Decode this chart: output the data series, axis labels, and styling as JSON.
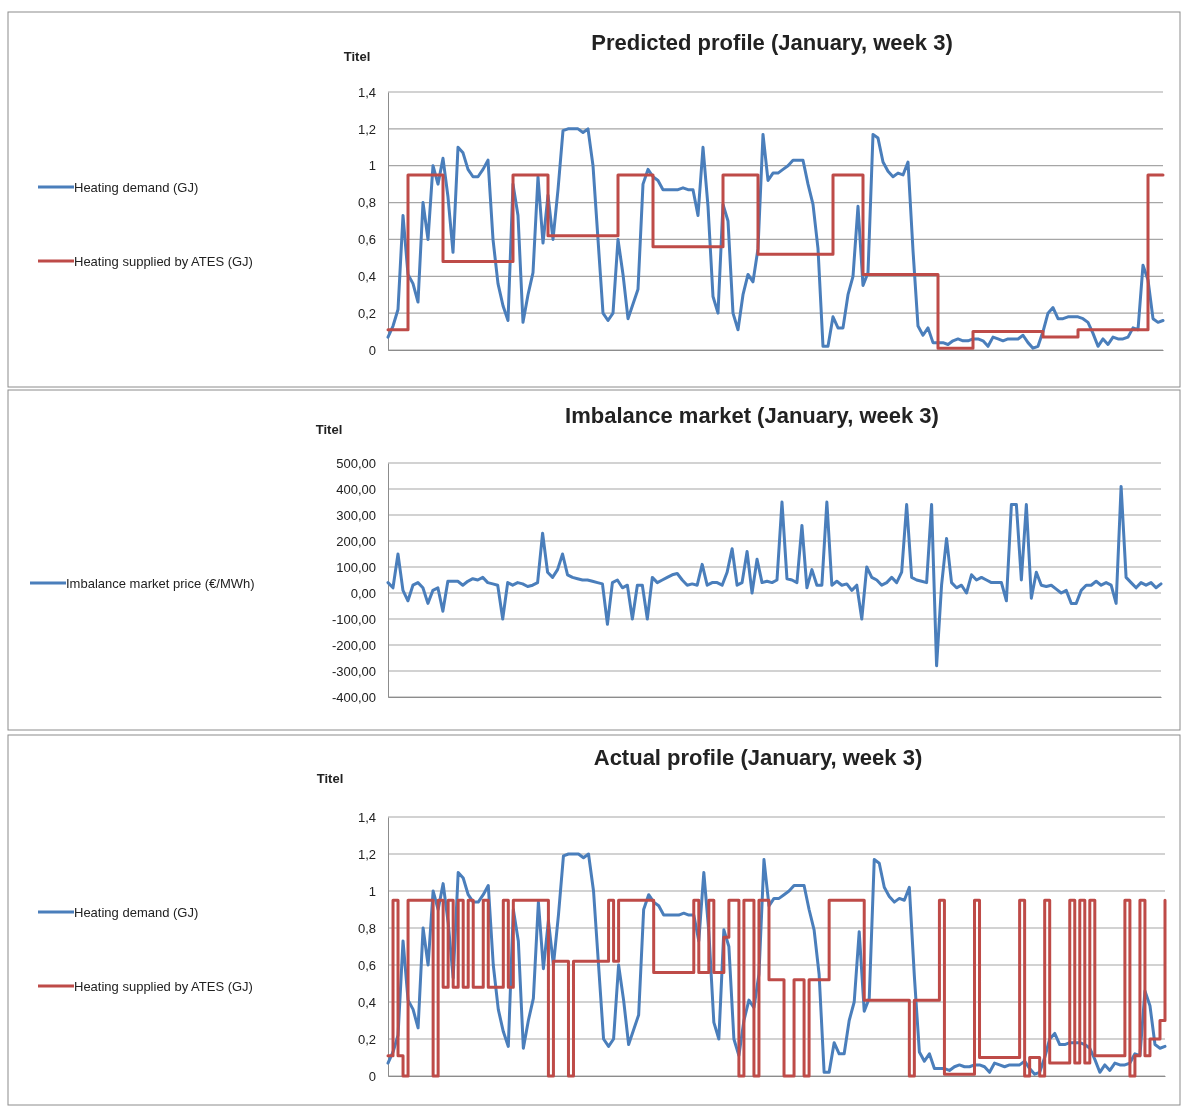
{
  "chart_data": [
    {
      "type": "line",
      "title": "Predicted profile (January, week 3)",
      "ylabel": "Titel",
      "grid": "y",
      "legend": "left",
      "categories": [
        null,
        null,
        null,
        null,
        null,
        null,
        null,
        null,
        null,
        null,
        null,
        null,
        null,
        null,
        null,
        null,
        null,
        null,
        null,
        null,
        null,
        null,
        null,
        null,
        null,
        null,
        null,
        null,
        null,
        null,
        null,
        null,
        null,
        null,
        null,
        null,
        null,
        null,
        null,
        null,
        null,
        null,
        null,
        null,
        null,
        null,
        null,
        null,
        null,
        null,
        null,
        null,
        null,
        null,
        null,
        null,
        null,
        null,
        null,
        null,
        null,
        null,
        null,
        null,
        null,
        null,
        null,
        null,
        null,
        null,
        null,
        null,
        null,
        null,
        null,
        null,
        null,
        null,
        null,
        null,
        null,
        null,
        null,
        null,
        null,
        null,
        null,
        null,
        null,
        null,
        null,
        null,
        null,
        null,
        null,
        null,
        null,
        null,
        null,
        null,
        null,
        null,
        null,
        null,
        null,
        null,
        null,
        null,
        null,
        null,
        null,
        null,
        null,
        null,
        null,
        null,
        null,
        null,
        null,
        null,
        null,
        null,
        null,
        null,
        null,
        null,
        null,
        null,
        null,
        null,
        null,
        null,
        null,
        null,
        null,
        null,
        null,
        null,
        null,
        null,
        null,
        null,
        null,
        null,
        null,
        null,
        null,
        null,
        null,
        null,
        null,
        null,
        null,
        null,
        null,
        null
      ],
      "ylim": [
        0,
        1.4
      ],
      "yticks": [
        {
          "value": 0,
          "label": "0"
        },
        {
          "value": 0.2,
          "label": "0,2"
        },
        {
          "value": 0.4,
          "label": "0,4"
        },
        {
          "value": 0.6,
          "label": "0,6"
        },
        {
          "value": 0.8,
          "label": "0,8"
        },
        {
          "value": 1,
          "label": "1"
        },
        {
          "value": 1.2,
          "label": "1,2"
        },
        {
          "value": 1.4,
          "label": "1,4"
        }
      ],
      "series": [
        {
          "name": "Heating demand (GJ)",
          "color": "#4a7ebb",
          "values": [
            0.07,
            0.13,
            0.22,
            0.73,
            0.41,
            0.36,
            0.26,
            0.8,
            0.6,
            1.0,
            0.9,
            1.04,
            0.83,
            0.53,
            1.1,
            1.07,
            0.98,
            0.94,
            0.94,
            0.98,
            1.03,
            0.6,
            0.36,
            0.24,
            0.16,
            0.9,
            0.73,
            0.15,
            0.3,
            0.42,
            0.94,
            0.58,
            0.84,
            0.6,
            0.87,
            1.19,
            1.2,
            1.2,
            1.2,
            1.18,
            1.2,
            1.0,
            0.6,
            0.2,
            0.16,
            0.2,
            0.6,
            0.41,
            0.17,
            0.25,
            0.33,
            0.9,
            0.98,
            0.94,
            0.92,
            0.87,
            0.87,
            0.87,
            0.87,
            0.88,
            0.87,
            0.87,
            0.73,
            1.1,
            0.78,
            0.29,
            0.2,
            0.79,
            0.7,
            0.2,
            0.11,
            0.3,
            0.41,
            0.37,
            0.55,
            1.17,
            0.92,
            0.96,
            0.96,
            0.98,
            1.0,
            1.03,
            1.03,
            1.03,
            0.9,
            0.79,
            0.55,
            0.02,
            0.02,
            0.18,
            0.12,
            0.12,
            0.3,
            0.4,
            0.78,
            0.35,
            0.42,
            1.17,
            1.15,
            1.02,
            0.97,
            0.94,
            0.96,
            0.95,
            1.02,
            0.54,
            0.13,
            0.08,
            0.12,
            0.04,
            0.04,
            0.04,
            0.03,
            0.05,
            0.06,
            0.05,
            0.05,
            0.06,
            0.06,
            0.05,
            0.02,
            0.07,
            0.06,
            0.05,
            0.06,
            0.06,
            0.06,
            0.08,
            0.04,
            0.01,
            0.02,
            0.1,
            0.2,
            0.23,
            0.17,
            0.17,
            0.18,
            0.18,
            0.18,
            0.17,
            0.15,
            0.09,
            0.02,
            0.06,
            0.03,
            0.07,
            0.06,
            0.06,
            0.07,
            0.12,
            0.11,
            0.46,
            0.38,
            0.17,
            0.15,
            0.16
          ]
        },
        {
          "name": "Heating supplied by ATES (GJ)",
          "type": "step",
          "color": "#be4b48",
          "values": [
            0.11,
            0.11,
            0.11,
            0.11,
            0.95,
            0.95,
            0.95,
            0.95,
            0.95,
            0.95,
            0.95,
            0.48,
            0.48,
            0.48,
            0.48,
            0.48,
            0.48,
            0.48,
            0.48,
            0.48,
            0.48,
            0.48,
            0.48,
            0.48,
            0.48,
            0.95,
            0.95,
            0.95,
            0.95,
            0.95,
            0.95,
            0.95,
            0.62,
            0.62,
            0.62,
            0.62,
            0.62,
            0.62,
            0.62,
            0.62,
            0.62,
            0.62,
            0.62,
            0.62,
            0.62,
            0.62,
            0.95,
            0.95,
            0.95,
            0.95,
            0.95,
            0.95,
            0.95,
            0.56,
            0.56,
            0.56,
            0.56,
            0.56,
            0.56,
            0.56,
            0.56,
            0.56,
            0.56,
            0.56,
            0.56,
            0.56,
            0.56,
            0.95,
            0.95,
            0.95,
            0.95,
            0.95,
            0.95,
            0.95,
            0.52,
            0.52,
            0.52,
            0.52,
            0.52,
            0.52,
            0.52,
            0.52,
            0.52,
            0.52,
            0.52,
            0.52,
            0.52,
            0.52,
            0.52,
            0.95,
            0.95,
            0.95,
            0.95,
            0.95,
            0.95,
            0.41,
            0.41,
            0.41,
            0.41,
            0.41,
            0.41,
            0.41,
            0.41,
            0.41,
            0.41,
            0.41,
            0.41,
            0.41,
            0.41,
            0.41,
            0.01,
            0.01,
            0.01,
            0.01,
            0.01,
            0.01,
            0.01,
            0.1,
            0.1,
            0.1,
            0.1,
            0.1,
            0.1,
            0.1,
            0.1,
            0.1,
            0.1,
            0.1,
            0.1,
            0.1,
            0.1,
            0.07,
            0.07,
            0.07,
            0.07,
            0.07,
            0.07,
            0.07,
            0.11,
            0.11,
            0.11,
            0.11,
            0.11,
            0.11,
            0.11,
            0.11,
            0.11,
            0.11,
            0.11,
            0.11,
            0.11,
            0.11,
            0.95,
            0.95,
            0.95,
            0.95
          ]
        }
      ]
    },
    {
      "type": "line",
      "title": "Imbalance market (January, week 3)",
      "ylabel": "Titel",
      "grid": "y",
      "legend": "left",
      "categories": [
        null,
        null,
        null,
        null,
        null,
        null,
        null,
        null,
        null,
        null,
        null,
        null,
        null,
        null,
        null,
        null,
        null,
        null,
        null,
        null,
        null,
        null,
        null,
        null,
        null,
        null,
        null,
        null,
        null,
        null,
        null,
        null,
        null,
        null,
        null,
        null,
        null,
        null,
        null,
        null,
        null,
        null,
        null,
        null,
        null,
        null,
        null,
        null,
        null,
        null,
        null,
        null,
        null,
        null,
        null,
        null,
        null,
        null,
        null,
        null,
        null,
        null,
        null,
        null,
        null,
        null,
        null,
        null,
        null,
        null,
        null,
        null,
        null,
        null,
        null,
        null,
        null,
        null,
        null,
        null,
        null,
        null,
        null,
        null,
        null,
        null,
        null,
        null,
        null,
        null,
        null,
        null,
        null,
        null,
        null,
        null,
        null,
        null,
        null,
        null,
        null,
        null,
        null,
        null,
        null,
        null,
        null,
        null,
        null,
        null,
        null,
        null,
        null,
        null,
        null,
        null,
        null,
        null,
        null,
        null,
        null,
        null,
        null,
        null,
        null,
        null,
        null,
        null,
        null,
        null,
        null,
        null,
        null,
        null,
        null,
        null,
        null,
        null,
        null,
        null,
        null,
        null,
        null,
        null,
        null,
        null,
        null,
        null,
        null,
        null,
        null,
        null,
        null,
        null,
        null,
        null
      ],
      "ylim": [
        -400,
        500
      ],
      "yticks": [
        {
          "value": -400,
          "label": "-400,00"
        },
        {
          "value": -300,
          "label": "-300,00"
        },
        {
          "value": -200,
          "label": "-200,00"
        },
        {
          "value": -100,
          "label": "-100,00"
        },
        {
          "value": 0,
          "label": "0,00"
        },
        {
          "value": 100,
          "label": "100,00"
        },
        {
          "value": 200,
          "label": "200,00"
        },
        {
          "value": 300,
          "label": "300,00"
        },
        {
          "value": 400,
          "label": "400,00"
        },
        {
          "value": 500,
          "label": "500,00"
        }
      ],
      "series": [
        {
          "name": "Imbalance market price (€/MWh)",
          "color": "#4a7ebb",
          "values": [
            40,
            20,
            150,
            10,
            -30,
            30,
            40,
            20,
            -40,
            10,
            20,
            -70,
            45,
            45,
            45,
            30,
            45,
            55,
            50,
            60,
            40,
            35,
            30,
            -100,
            40,
            30,
            40,
            35,
            25,
            30,
            40,
            230,
            80,
            60,
            90,
            150,
            70,
            60,
            55,
            50,
            50,
            45,
            40,
            35,
            -120,
            40,
            50,
            20,
            30,
            -100,
            30,
            30,
            -100,
            60,
            40,
            50,
            60,
            70,
            75,
            50,
            30,
            35,
            30,
            110,
            30,
            40,
            40,
            30,
            80,
            170,
            30,
            40,
            160,
            0,
            130,
            40,
            45,
            40,
            50,
            350,
            55,
            50,
            40,
            260,
            20,
            90,
            30,
            30,
            350,
            30,
            45,
            30,
            35,
            10,
            30,
            -100,
            100,
            60,
            50,
            30,
            40,
            60,
            40,
            80,
            340,
            60,
            50,
            45,
            40,
            340,
            -280,
            30,
            210,
            40,
            20,
            30,
            0,
            70,
            50,
            60,
            50,
            40,
            40,
            40,
            -30,
            340,
            340,
            50,
            340,
            -20,
            80,
            30,
            25,
            30,
            15,
            0,
            10,
            -40,
            -40,
            10,
            30,
            30,
            45,
            30,
            40,
            30,
            -40,
            410,
            60,
            40,
            20,
            40,
            30,
            40,
            20,
            35
          ]
        }
      ]
    },
    {
      "type": "line",
      "title": "Actual profile (January, week 3)",
      "ylabel": "Titel",
      "grid": "y",
      "legend": "left",
      "categories": [
        null,
        null,
        null,
        null,
        null,
        null,
        null,
        null,
        null,
        null,
        null,
        null,
        null,
        null,
        null,
        null,
        null,
        null,
        null,
        null,
        null,
        null,
        null,
        null,
        null,
        null,
        null,
        null,
        null,
        null,
        null,
        null,
        null,
        null,
        null,
        null,
        null,
        null,
        null,
        null,
        null,
        null,
        null,
        null,
        null,
        null,
        null,
        null,
        null,
        null,
        null,
        null,
        null,
        null,
        null,
        null,
        null,
        null,
        null,
        null,
        null,
        null,
        null,
        null,
        null,
        null,
        null,
        null,
        null,
        null,
        null,
        null,
        null,
        null,
        null,
        null,
        null,
        null,
        null,
        null,
        null,
        null,
        null,
        null,
        null,
        null,
        null,
        null,
        null,
        null,
        null,
        null,
        null,
        null,
        null,
        null,
        null,
        null,
        null,
        null,
        null,
        null,
        null,
        null,
        null,
        null,
        null,
        null,
        null,
        null,
        null,
        null,
        null,
        null,
        null,
        null,
        null,
        null,
        null,
        null,
        null,
        null,
        null,
        null,
        null,
        null,
        null,
        null,
        null,
        null,
        null,
        null,
        null,
        null,
        null,
        null,
        null,
        null,
        null,
        null,
        null,
        null,
        null,
        null,
        null,
        null,
        null,
        null,
        null,
        null,
        null,
        null,
        null,
        null,
        null,
        null
      ],
      "ylim": [
        0,
        1.4
      ],
      "yticks": [
        {
          "value": 0,
          "label": "0"
        },
        {
          "value": 0.2,
          "label": "0,2"
        },
        {
          "value": 0.4,
          "label": "0,4"
        },
        {
          "value": 0.6,
          "label": "0,6"
        },
        {
          "value": 0.8,
          "label": "0,8"
        },
        {
          "value": 1,
          "label": "1"
        },
        {
          "value": 1.2,
          "label": "1,2"
        },
        {
          "value": 1.4,
          "label": "1,4"
        }
      ],
      "series": [
        {
          "name": "Heating demand (GJ)",
          "color": "#4a7ebb",
          "values": [
            0.07,
            0.13,
            0.22,
            0.73,
            0.41,
            0.36,
            0.26,
            0.8,
            0.6,
            1.0,
            0.9,
            1.04,
            0.83,
            0.53,
            1.1,
            1.07,
            0.98,
            0.94,
            0.94,
            0.98,
            1.03,
            0.6,
            0.36,
            0.24,
            0.16,
            0.9,
            0.73,
            0.15,
            0.3,
            0.42,
            0.94,
            0.58,
            0.84,
            0.6,
            0.87,
            1.19,
            1.2,
            1.2,
            1.2,
            1.18,
            1.2,
            1.0,
            0.6,
            0.2,
            0.16,
            0.2,
            0.6,
            0.41,
            0.17,
            0.25,
            0.33,
            0.9,
            0.98,
            0.94,
            0.92,
            0.87,
            0.87,
            0.87,
            0.87,
            0.88,
            0.87,
            0.87,
            0.73,
            1.1,
            0.78,
            0.29,
            0.2,
            0.79,
            0.7,
            0.2,
            0.11,
            0.3,
            0.41,
            0.37,
            0.55,
            1.17,
            0.92,
            0.96,
            0.96,
            0.98,
            1.0,
            1.03,
            1.03,
            1.03,
            0.9,
            0.79,
            0.55,
            0.02,
            0.02,
            0.18,
            0.12,
            0.12,
            0.3,
            0.4,
            0.78,
            0.35,
            0.42,
            1.17,
            1.15,
            1.02,
            0.97,
            0.94,
            0.96,
            0.95,
            1.02,
            0.54,
            0.13,
            0.08,
            0.12,
            0.04,
            0.04,
            0.04,
            0.03,
            0.05,
            0.06,
            0.05,
            0.05,
            0.06,
            0.06,
            0.05,
            0.02,
            0.07,
            0.06,
            0.05,
            0.06,
            0.06,
            0.06,
            0.08,
            0.04,
            0.01,
            0.02,
            0.1,
            0.2,
            0.23,
            0.17,
            0.17,
            0.18,
            0.18,
            0.18,
            0.17,
            0.15,
            0.09,
            0.02,
            0.06,
            0.03,
            0.07,
            0.06,
            0.06,
            0.07,
            0.12,
            0.11,
            0.46,
            0.38,
            0.17,
            0.15,
            0.16
          ]
        },
        {
          "name": "Heating supplied by ATES (GJ)",
          "type": "step",
          "color": "#be4b48",
          "values": [
            0.11,
            0.95,
            0.11,
            0,
            0.95,
            0.95,
            0.95,
            0.95,
            0.95,
            0,
            0.95,
            0.48,
            0.95,
            0.48,
            0.95,
            0.48,
            0.95,
            0.48,
            0.48,
            0.95,
            0.48,
            0.48,
            0.48,
            0.95,
            0.48,
            0.95,
            0.95,
            0.95,
            0.95,
            0.95,
            0.95,
            0.95,
            0,
            0.62,
            0.62,
            0.62,
            0,
            0.62,
            0.62,
            0.62,
            0.62,
            0.62,
            0.62,
            0.62,
            0.95,
            0.62,
            0.95,
            0.95,
            0.95,
            0.95,
            0.95,
            0.95,
            0.95,
            0.56,
            0.56,
            0.56,
            0.56,
            0.56,
            0.56,
            0.56,
            0.56,
            0.95,
            0.56,
            0.56,
            0.95,
            0.56,
            0.56,
            0.75,
            0.95,
            0.95,
            0,
            0.95,
            0.95,
            0,
            0.95,
            0.95,
            0.52,
            0.52,
            0.52,
            0,
            0,
            0.52,
            0.52,
            0,
            0.52,
            0.52,
            0.52,
            0.52,
            0.95,
            0.95,
            0.95,
            0.95,
            0.95,
            0.95,
            0.95,
            0.41,
            0.41,
            0.41,
            0.41,
            0.41,
            0.41,
            0.41,
            0.41,
            0.41,
            0,
            0.41,
            0.41,
            0.41,
            0.41,
            0.41,
            0.95,
            0.01,
            0.01,
            0.01,
            0.01,
            0.01,
            0.01,
            0.95,
            0.1,
            0.1,
            0.1,
            0.1,
            0.1,
            0.1,
            0.1,
            0.1,
            0.95,
            0,
            0.1,
            0.1,
            0,
            0.95,
            0.07,
            0.07,
            0.07,
            0.07,
            0.95,
            0.07,
            0.95,
            0.07,
            0.95,
            0.11,
            0.11,
            0.11,
            0.11,
            0.11,
            0.11,
            0.95,
            0,
            0.11,
            0.95,
            0.11,
            0.2,
            0.2,
            0.3,
            0.95
          ]
        }
      ]
    }
  ]
}
